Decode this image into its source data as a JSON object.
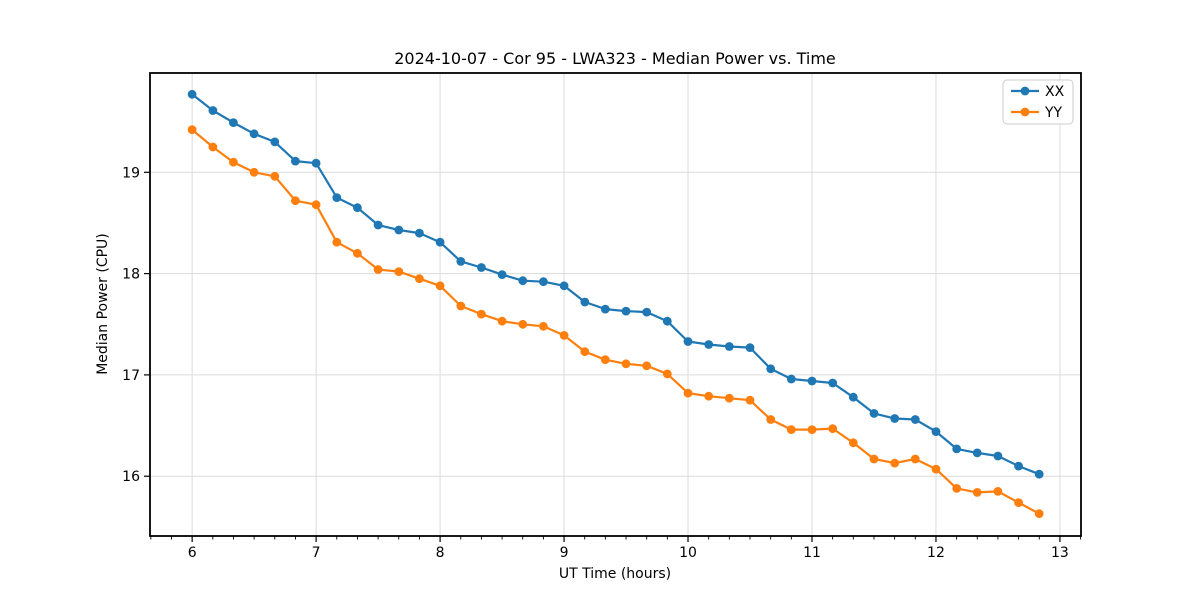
{
  "chart_data": {
    "type": "line",
    "title": "2024-10-07 - Cor 95 - LWA323 - Median Power vs. Time",
    "xlabel": "UT Time (hours)",
    "ylabel": "Median Power (CPU)",
    "xlim": [
      5.66,
      13.17
    ],
    "ylim": [
      15.41,
      19.98
    ],
    "xticks": [
      6,
      7,
      8,
      9,
      10,
      11,
      12,
      13
    ],
    "yticks": [
      16,
      17,
      18,
      19
    ],
    "x_minor_tick_step_hours": 0.1667,
    "grid": true,
    "legend_position": "upper right",
    "marker": "o",
    "background_color": "#ffffff",
    "grid_color": "#dcdcdc",
    "spine_color": "#000000",
    "x": [
      6.0,
      6.167,
      6.333,
      6.5,
      6.667,
      6.833,
      7.0,
      7.167,
      7.333,
      7.5,
      7.667,
      7.833,
      8.0,
      8.167,
      8.333,
      8.5,
      8.667,
      8.833,
      9.0,
      9.167,
      9.333,
      9.5,
      9.667,
      9.833,
      10.0,
      10.167,
      10.333,
      10.5,
      10.667,
      10.833,
      11.0,
      11.167,
      11.333,
      11.5,
      11.667,
      11.833,
      12.0,
      12.167,
      12.333,
      12.5,
      12.667,
      12.833
    ],
    "series": [
      {
        "name": "XX",
        "color": "#1f77b4",
        "values": [
          19.77,
          19.61,
          19.49,
          19.38,
          19.3,
          19.11,
          19.09,
          18.75,
          18.65,
          18.48,
          18.43,
          18.4,
          18.31,
          18.12,
          18.06,
          17.99,
          17.93,
          17.92,
          17.88,
          17.72,
          17.65,
          17.63,
          17.62,
          17.53,
          17.33,
          17.3,
          17.28,
          17.27,
          17.06,
          16.96,
          16.94,
          16.92,
          16.78,
          16.62,
          16.57,
          16.56,
          16.44,
          16.27,
          16.23,
          16.2,
          16.1,
          16.02
        ]
      },
      {
        "name": "YY",
        "color": "#ff7f0e",
        "values": [
          19.42,
          19.25,
          19.1,
          19.0,
          18.96,
          18.72,
          18.68,
          18.31,
          18.2,
          18.04,
          18.02,
          17.95,
          17.88,
          17.68,
          17.6,
          17.53,
          17.5,
          17.48,
          17.39,
          17.23,
          17.15,
          17.11,
          17.09,
          17.01,
          16.82,
          16.79,
          16.77,
          16.75,
          16.56,
          16.46,
          16.46,
          16.47,
          16.33,
          16.17,
          16.13,
          16.17,
          16.07,
          15.88,
          15.84,
          15.85,
          15.74,
          15.63
        ]
      }
    ]
  }
}
